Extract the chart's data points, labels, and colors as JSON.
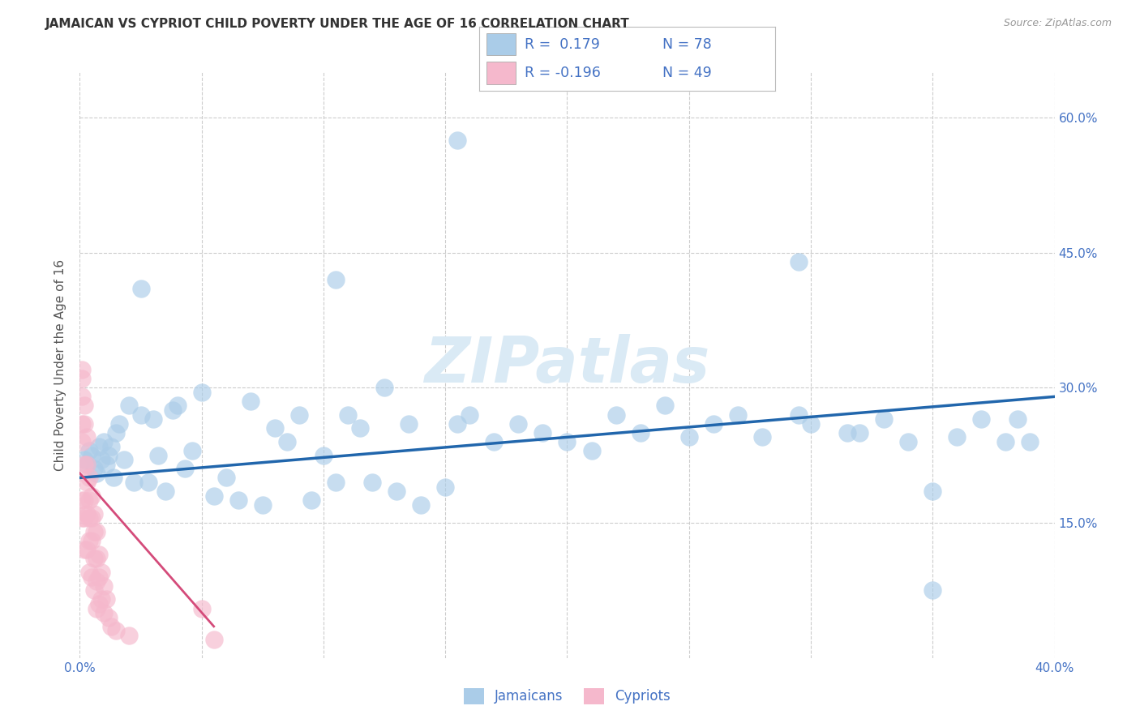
{
  "title": "JAMAICAN VS CYPRIOT CHILD POVERTY UNDER THE AGE OF 16 CORRELATION CHART",
  "source": "Source: ZipAtlas.com",
  "label_jamaicans": "Jamaicans",
  "label_cypriots": "Cypriots",
  "ylabel": "Child Poverty Under the Age of 16",
  "xlim": [
    0.0,
    0.4
  ],
  "ylim": [
    0.0,
    0.65
  ],
  "ytick_positions": [
    0.15,
    0.3,
    0.45,
    0.6
  ],
  "ytick_labels": [
    "15.0%",
    "30.0%",
    "45.0%",
    "60.0%"
  ],
  "xtick_positions": [
    0.0,
    0.05,
    0.1,
    0.15,
    0.2,
    0.25,
    0.3,
    0.35,
    0.4
  ],
  "xtick_labels_show": [
    "0.0%",
    "",
    "",
    "",
    "",
    "",
    "",
    "",
    "40.0%"
  ],
  "blue_scatter": "#aacce8",
  "pink_scatter": "#f5b8cc",
  "blue_line": "#2166ac",
  "pink_line": "#d44b7a",
  "tick_color": "#4472c4",
  "label_color": "#4472c4",
  "title_color": "#333333",
  "source_color": "#999999",
  "watermark_color": "#daeaf5",
  "grid_color": "#cccccc",
  "bg_color": "#ffffff",
  "legend_text_color": "#4472c4",
  "legend_R_color": "#333333",
  "title_fontsize": 11,
  "tick_fontsize": 11,
  "ylabel_fontsize": 11,
  "watermark": "ZIPatlas",
  "j_x": [
    0.002,
    0.003,
    0.004,
    0.005,
    0.006,
    0.007,
    0.008,
    0.009,
    0.01,
    0.011,
    0.012,
    0.013,
    0.014,
    0.015,
    0.016,
    0.018,
    0.02,
    0.022,
    0.025,
    0.028,
    0.03,
    0.032,
    0.035,
    0.038,
    0.04,
    0.043,
    0.046,
    0.05,
    0.055,
    0.06,
    0.065,
    0.07,
    0.075,
    0.08,
    0.085,
    0.09,
    0.095,
    0.1,
    0.105,
    0.11,
    0.115,
    0.12,
    0.125,
    0.13,
    0.135,
    0.14,
    0.15,
    0.155,
    0.16,
    0.17,
    0.18,
    0.19,
    0.2,
    0.21,
    0.22,
    0.23,
    0.24,
    0.25,
    0.26,
    0.27,
    0.28,
    0.295,
    0.3,
    0.315,
    0.32,
    0.33,
    0.34,
    0.35,
    0.36,
    0.37,
    0.38,
    0.385,
    0.39,
    0.155,
    0.105,
    0.295,
    0.35,
    0.025
  ],
  "j_y": [
    0.22,
    0.215,
    0.23,
    0.225,
    0.21,
    0.205,
    0.235,
    0.22,
    0.24,
    0.215,
    0.225,
    0.235,
    0.2,
    0.25,
    0.26,
    0.22,
    0.28,
    0.195,
    0.27,
    0.195,
    0.265,
    0.225,
    0.185,
    0.275,
    0.28,
    0.21,
    0.23,
    0.295,
    0.18,
    0.2,
    0.175,
    0.285,
    0.17,
    0.255,
    0.24,
    0.27,
    0.175,
    0.225,
    0.195,
    0.27,
    0.255,
    0.195,
    0.3,
    0.185,
    0.26,
    0.17,
    0.19,
    0.26,
    0.27,
    0.24,
    0.26,
    0.25,
    0.24,
    0.23,
    0.27,
    0.25,
    0.28,
    0.245,
    0.26,
    0.27,
    0.245,
    0.27,
    0.26,
    0.25,
    0.25,
    0.265,
    0.24,
    0.185,
    0.245,
    0.265,
    0.24,
    0.265,
    0.24,
    0.575,
    0.42,
    0.44,
    0.075,
    0.41
  ],
  "c_x": [
    0.001,
    0.001,
    0.001,
    0.001,
    0.001,
    0.001,
    0.001,
    0.002,
    0.002,
    0.002,
    0.002,
    0.002,
    0.002,
    0.003,
    0.003,
    0.003,
    0.003,
    0.003,
    0.004,
    0.004,
    0.004,
    0.004,
    0.004,
    0.005,
    0.005,
    0.005,
    0.005,
    0.006,
    0.006,
    0.006,
    0.006,
    0.007,
    0.007,
    0.007,
    0.007,
    0.008,
    0.008,
    0.008,
    0.009,
    0.009,
    0.01,
    0.01,
    0.011,
    0.012,
    0.013,
    0.015,
    0.02,
    0.05,
    0.055
  ],
  "c_y": [
    0.32,
    0.31,
    0.29,
    0.26,
    0.24,
    0.175,
    0.155,
    0.28,
    0.26,
    0.215,
    0.175,
    0.155,
    0.12,
    0.245,
    0.215,
    0.195,
    0.16,
    0.12,
    0.2,
    0.175,
    0.155,
    0.13,
    0.095,
    0.18,
    0.155,
    0.13,
    0.09,
    0.16,
    0.14,
    0.11,
    0.075,
    0.14,
    0.11,
    0.085,
    0.055,
    0.115,
    0.09,
    0.06,
    0.095,
    0.065,
    0.08,
    0.05,
    0.065,
    0.045,
    0.035,
    0.03,
    0.025,
    0.055,
    0.02
  ],
  "j_line_x": [
    0.0,
    0.4
  ],
  "j_line_y": [
    0.2,
    0.29
  ],
  "c_line_x": [
    0.0,
    0.055
  ],
  "c_line_y": [
    0.205,
    0.035
  ]
}
